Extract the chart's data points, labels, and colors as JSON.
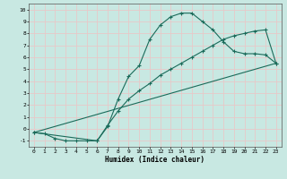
{
  "xlabel": "Humidex (Indice chaleur)",
  "xlim": [
    -0.5,
    23.5
  ],
  "ylim": [
    -1.5,
    10.5
  ],
  "xticks": [
    0,
    1,
    2,
    3,
    4,
    5,
    6,
    7,
    8,
    9,
    10,
    11,
    12,
    13,
    14,
    15,
    16,
    17,
    18,
    19,
    20,
    21,
    22,
    23
  ],
  "yticks": [
    -1,
    0,
    1,
    2,
    3,
    4,
    5,
    6,
    7,
    8,
    9,
    10
  ],
  "bg_color": "#c8e8e2",
  "grid_color": "#e8c8c8",
  "line_color": "#1a6b5a",
  "curve1_x": [
    0,
    1,
    2,
    3,
    4,
    5,
    6,
    7,
    8,
    9,
    10,
    11,
    12,
    13,
    14,
    15,
    16,
    17,
    18,
    19,
    20,
    21,
    22,
    23
  ],
  "curve1_y": [
    -0.3,
    -0.4,
    -0.8,
    -1.0,
    -1.0,
    -1.0,
    -1.0,
    0.2,
    2.5,
    4.4,
    5.3,
    7.5,
    8.7,
    9.4,
    9.7,
    9.7,
    9.0,
    8.3,
    7.3,
    6.5,
    6.3,
    6.3,
    6.2,
    5.5
  ],
  "curve2_x": [
    0,
    6,
    7,
    8,
    9,
    10,
    11,
    12,
    13,
    14,
    15,
    16,
    17,
    18,
    19,
    20,
    21,
    22,
    23
  ],
  "curve2_y": [
    -0.3,
    -1.0,
    0.3,
    1.5,
    2.5,
    3.2,
    3.8,
    4.5,
    5.0,
    5.5,
    6.0,
    6.5,
    7.0,
    7.5,
    7.8,
    8.0,
    8.2,
    8.3,
    5.5
  ],
  "curve3_x": [
    0,
    23
  ],
  "curve3_y": [
    -0.3,
    5.5
  ]
}
